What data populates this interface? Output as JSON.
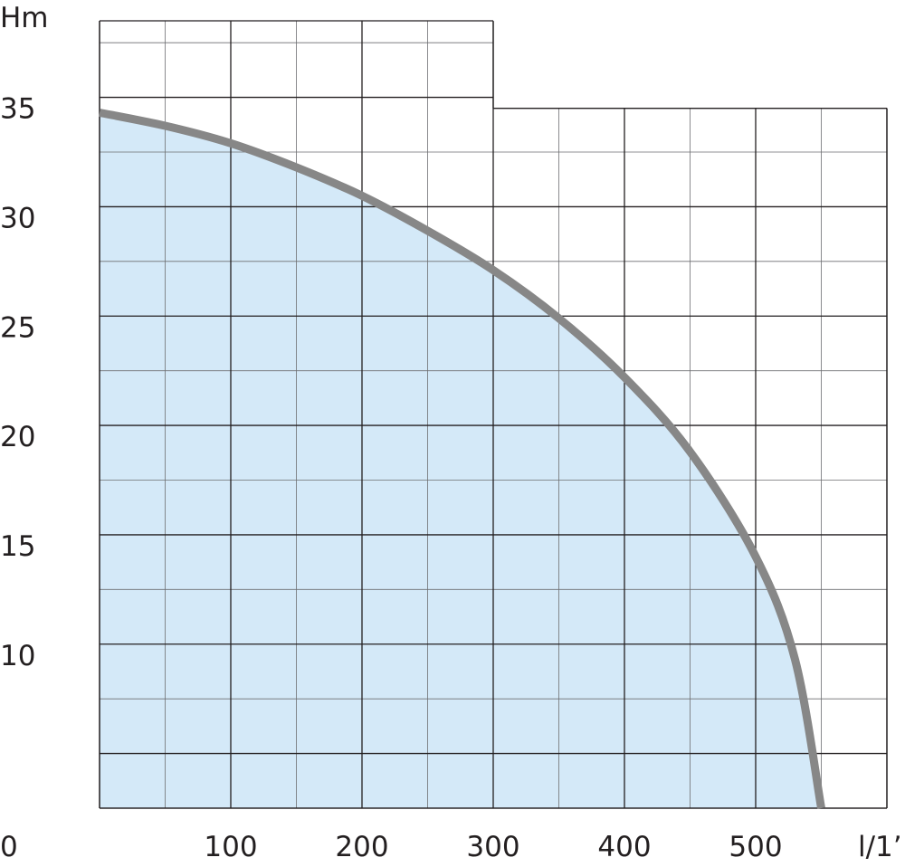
{
  "chart_data": {
    "type": "area",
    "title": "",
    "xlabel": "l/1’",
    "ylabel": "Hm",
    "xlim": [
      0,
      600
    ],
    "ylim": [
      3,
      39
    ],
    "x_ticks": [
      100,
      200,
      300,
      400,
      500
    ],
    "y_ticks": [
      10,
      15,
      20,
      25,
      30,
      35
    ],
    "origin_label": "0",
    "grid": true,
    "series": [
      {
        "x": [
          0,
          50,
          100,
          150,
          200,
          250,
          300,
          350,
          400,
          450,
          500,
          530,
          550
        ],
        "y": [
          34.8,
          34.2,
          33.4,
          32.3,
          31.0,
          29.4,
          27.6,
          25.4,
          22.7,
          19.3,
          14.5,
          9.8,
          3.0
        ]
      }
    ],
    "colors": {
      "fill": "#d4e9f8",
      "curve": "#878787",
      "grid_major": "#231f20",
      "grid_minor": "#6d6e71"
    }
  }
}
